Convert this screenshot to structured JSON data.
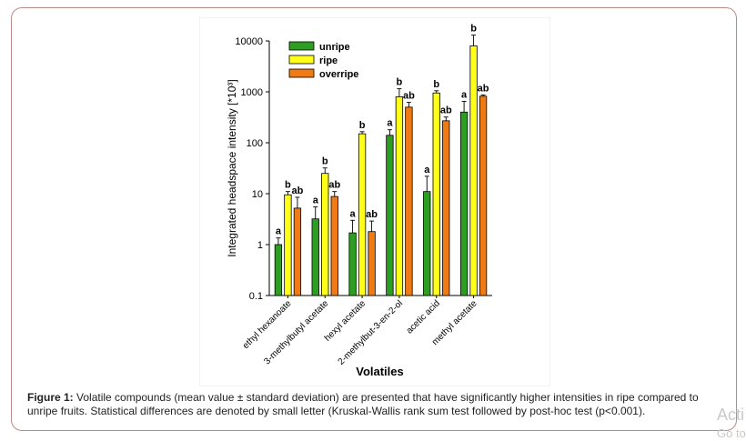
{
  "figure": {
    "caption_label": "Figure 1:",
    "caption_text": " Volatile compounds (mean value ± standard deviation) are presented that have significantly higher intensities in ripe compared to unripe fruits. Statistical differences are denoted by small letter (Kruskal-Wallis rank sum test followed by post-hoc test (p<0.001)."
  },
  "watermark": {
    "line1": "Acti",
    "line2": "Go to"
  },
  "chart_data": {
    "type": "bar",
    "title": "",
    "xlabel": "Volatiles",
    "ylabel": "Integrated headspace intensity [*10³]",
    "yscale": "log",
    "ylim": [
      0.1,
      10000
    ],
    "yticks": [
      "0.1",
      "1",
      "10",
      "100",
      "1000",
      "10000"
    ],
    "legend_position": "top-left",
    "grid": false,
    "categories": [
      "ethyl hexanoate",
      "3-methylbutyl acetate",
      "hexyl acetate",
      "2-methylbut-3-en-2-ol",
      "acetic acid",
      "methyl acetate"
    ],
    "series": [
      {
        "name": "unripe",
        "color": "#2e9e22",
        "values": [
          1.0,
          3.2,
          1.7,
          140,
          11,
          400
        ],
        "errors": [
          1.35,
          5.5,
          3.0,
          180,
          22,
          650
        ],
        "letters": [
          "a",
          "a",
          "a",
          "a",
          "a",
          "a"
        ]
      },
      {
        "name": "ripe",
        "color": "#ffff1a",
        "values": [
          9.5,
          25,
          150,
          800,
          950,
          8000
        ],
        "errors": [
          11,
          32,
          165,
          1150,
          1050,
          13000
        ],
        "letters": [
          "b",
          "b",
          "b",
          "b",
          "b",
          "b"
        ]
      },
      {
        "name": "overripe",
        "color": "#f07a14",
        "values": [
          5.2,
          8.8,
          1.8,
          500,
          270,
          820
        ],
        "errors": [
          8.5,
          11,
          2.9,
          620,
          320,
          870
        ],
        "letters": [
          "ab",
          "ab",
          "ab",
          "ab",
          "ab",
          "ab"
        ]
      }
    ]
  }
}
